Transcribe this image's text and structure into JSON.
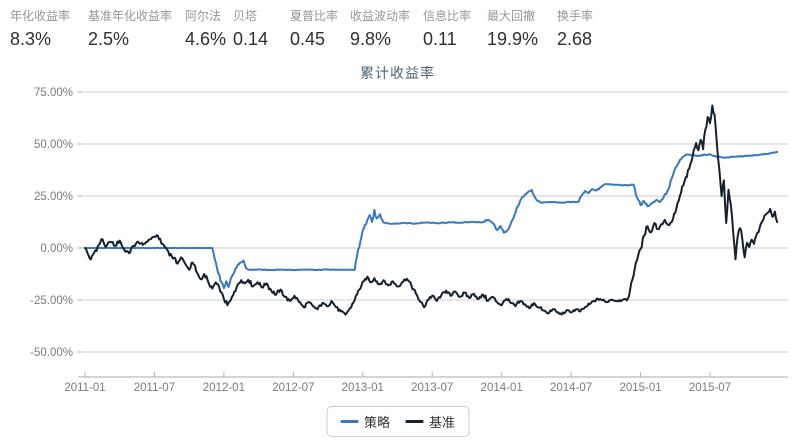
{
  "stats": [
    {
      "label": "年化收益率",
      "value": "8.3%"
    },
    {
      "label": "基准年化收益率",
      "value": "2.5%"
    },
    {
      "label": "阿尔法",
      "value": "4.6%"
    },
    {
      "label": "贝塔",
      "value": "0.14"
    },
    {
      "label": "夏普比率",
      "value": "0.45"
    },
    {
      "label": "收益波动率",
      "value": "9.8%"
    },
    {
      "label": "信息比率",
      "value": "0.11"
    },
    {
      "label": "最大回撤",
      "value": "19.9%"
    },
    {
      "label": "换手率",
      "value": "2.68"
    }
  ],
  "chart_data": {
    "type": "line",
    "title": "累计收益率",
    "xlabel": "",
    "ylabel": "",
    "grid": "horizontal-only",
    "legend_position": "bottom-center",
    "ylim": [
      -50,
      75
    ],
    "y_ticks": [
      {
        "label": "75.00%",
        "value": 75
      },
      {
        "label": "50.00%",
        "value": 50
      },
      {
        "label": "25.00%",
        "value": 25
      },
      {
        "label": "0.00%",
        "value": 0
      },
      {
        "label": "-25.00%",
        "value": -25
      },
      {
        "label": "-50.00%",
        "value": -50
      }
    ],
    "x_ticks": [
      "2011-01",
      "2011-07",
      "2012-01",
      "2012-07",
      "2013-01",
      "2013-07",
      "2014-01",
      "2014-07",
      "2015-01",
      "2015-07"
    ],
    "x_unit": "month-offset-from-2011-01",
    "y_unit": "percent-cumulative-return",
    "series": [
      {
        "name": "策略",
        "color": "#3b78bd",
        "points": [
          [
            0,
            0
          ],
          [
            11,
            0
          ],
          [
            11.2,
            -5
          ],
          [
            11.5,
            -12
          ],
          [
            11.8,
            -16.5
          ],
          [
            12,
            -19.3
          ],
          [
            12.2,
            -16
          ],
          [
            12.4,
            -18.8
          ],
          [
            12.7,
            -13.5
          ],
          [
            13,
            -10
          ],
          [
            13.4,
            -7
          ],
          [
            13.7,
            -6
          ],
          [
            13.9,
            -9.5
          ],
          [
            14.2,
            -10.5
          ],
          [
            15,
            -10.3
          ],
          [
            16,
            -10.6
          ],
          [
            17,
            -10.4
          ],
          [
            18,
            -10.6
          ],
          [
            19,
            -10.4
          ],
          [
            20,
            -10.6
          ],
          [
            21,
            -10.3
          ],
          [
            22,
            -10.5
          ],
          [
            23.3,
            -10.5
          ],
          [
            23.5,
            -4
          ],
          [
            23.8,
            3.5
          ],
          [
            24.1,
            9.5
          ],
          [
            24.4,
            13.5
          ],
          [
            24.6,
            15.8
          ],
          [
            24.8,
            12.5
          ],
          [
            25,
            18.3
          ],
          [
            25.2,
            14.2
          ],
          [
            25.5,
            16.2
          ],
          [
            25.8,
            12.2
          ],
          [
            26.5,
            11.6
          ],
          [
            27.5,
            12.1
          ],
          [
            28.5,
            11.7
          ],
          [
            29.5,
            12.3
          ],
          [
            30.5,
            11.9
          ],
          [
            31.5,
            12.4
          ],
          [
            32.5,
            12.1
          ],
          [
            33.5,
            12.6
          ],
          [
            34.3,
            12.3
          ],
          [
            34.8,
            13.6
          ],
          [
            35.2,
            12.1
          ],
          [
            35.6,
            8.6
          ],
          [
            35.9,
            10.6
          ],
          [
            36.2,
            7.3
          ],
          [
            36.6,
            9.2
          ],
          [
            37,
            14
          ],
          [
            37.4,
            20
          ],
          [
            37.8,
            24.5
          ],
          [
            38.2,
            26.5
          ],
          [
            38.6,
            27.9
          ],
          [
            39,
            23.2
          ],
          [
            39.4,
            21.8
          ],
          [
            40.2,
            22.1
          ],
          [
            41.2,
            21.8
          ],
          [
            42.2,
            22.2
          ],
          [
            42.6,
            22
          ],
          [
            42.9,
            25.1
          ],
          [
            43.2,
            27.4
          ],
          [
            43.5,
            26.4
          ],
          [
            43.8,
            28.2
          ],
          [
            44.2,
            27.7
          ],
          [
            44.6,
            29.4
          ],
          [
            45,
            30.8
          ],
          [
            46,
            30.4
          ],
          [
            47,
            30.1
          ],
          [
            47.4,
            30.5
          ],
          [
            47.7,
            24.2
          ],
          [
            48,
            20.6
          ],
          [
            48.3,
            22.6
          ],
          [
            48.6,
            20.1
          ],
          [
            49,
            21.6
          ],
          [
            49.4,
            23.1
          ],
          [
            49.7,
            22.1
          ],
          [
            50,
            24.6
          ],
          [
            50.4,
            28.2
          ],
          [
            50.8,
            35.1
          ],
          [
            51.2,
            40.2
          ],
          [
            51.6,
            43.6
          ],
          [
            52,
            44.9
          ],
          [
            53,
            44.3
          ],
          [
            54,
            45.1
          ],
          [
            54.5,
            44
          ],
          [
            55.2,
            43.4
          ],
          [
            56.2,
            43.9
          ],
          [
            57.2,
            44.3
          ],
          [
            58.2,
            44.7
          ],
          [
            59,
            45.3
          ],
          [
            59.5,
            45.9
          ],
          [
            59.8,
            46.2
          ]
        ]
      },
      {
        "name": "基准",
        "color": "#15212d",
        "points": [
          [
            0,
            0
          ],
          [
            0.3,
            -3.5
          ],
          [
            0.5,
            -5.5
          ],
          [
            0.8,
            -2
          ],
          [
            1.2,
            1.5
          ],
          [
            1.5,
            4.3
          ],
          [
            1.8,
            0.5
          ],
          [
            2.2,
            3
          ],
          [
            2.6,
            1
          ],
          [
            3,
            3.5
          ],
          [
            3.4,
            -1
          ],
          [
            3.8,
            -2.5
          ],
          [
            4.2,
            1
          ],
          [
            4.6,
            3
          ],
          [
            5,
            1.5
          ],
          [
            5.5,
            4
          ],
          [
            6,
            5.5
          ],
          [
            6.3,
            5.8
          ],
          [
            6.7,
            2
          ],
          [
            7,
            0
          ],
          [
            7.5,
            -4
          ],
          [
            8,
            -7.5
          ],
          [
            8.3,
            -4.5
          ],
          [
            8.7,
            -8
          ],
          [
            9,
            -10.5
          ],
          [
            9.3,
            -7
          ],
          [
            9.7,
            -12
          ],
          [
            10,
            -15
          ],
          [
            10.3,
            -12.5
          ],
          [
            10.7,
            -17
          ],
          [
            11,
            -19.5
          ],
          [
            11.3,
            -16.5
          ],
          [
            11.7,
            -21
          ],
          [
            12,
            -24.5
          ],
          [
            12.3,
            -27.5
          ],
          [
            12.6,
            -25
          ],
          [
            12.9,
            -21
          ],
          [
            13.2,
            -17.5
          ],
          [
            13.5,
            -15.5
          ],
          [
            13.8,
            -17
          ],
          [
            14.1,
            -15.3
          ],
          [
            14.5,
            -18.5
          ],
          [
            14.9,
            -16.5
          ],
          [
            15.3,
            -19
          ],
          [
            15.7,
            -17
          ],
          [
            16.1,
            -20.5
          ],
          [
            16.5,
            -22.5
          ],
          [
            16.9,
            -20
          ],
          [
            17.3,
            -23.5
          ],
          [
            17.7,
            -25.5
          ],
          [
            18.1,
            -23
          ],
          [
            18.5,
            -26
          ],
          [
            18.9,
            -28.5
          ],
          [
            19.3,
            -26
          ],
          [
            19.7,
            -28
          ],
          [
            20.1,
            -29.5
          ],
          [
            20.5,
            -26.5
          ],
          [
            20.9,
            -28
          ],
          [
            21.3,
            -25.5
          ],
          [
            21.7,
            -28.5
          ],
          [
            22.1,
            -30.5
          ],
          [
            22.5,
            -32
          ],
          [
            22.9,
            -29
          ],
          [
            23.3,
            -25
          ],
          [
            23.7,
            -20
          ],
          [
            24.1,
            -16
          ],
          [
            24.4,
            -13.8
          ],
          [
            24.7,
            -16.5
          ],
          [
            25,
            -14.5
          ],
          [
            25.4,
            -17.5
          ],
          [
            25.8,
            -15.5
          ],
          [
            26.2,
            -18
          ],
          [
            26.6,
            -16
          ],
          [
            27,
            -18.5
          ],
          [
            27.4,
            -16.5
          ],
          [
            27.8,
            -14.8
          ],
          [
            28.2,
            -18
          ],
          [
            28.6,
            -22
          ],
          [
            29,
            -26
          ],
          [
            29.3,
            -28.5
          ],
          [
            29.6,
            -25
          ],
          [
            30,
            -23
          ],
          [
            30.4,
            -25.5
          ],
          [
            30.8,
            -22.5
          ],
          [
            31.2,
            -20.5
          ],
          [
            31.6,
            -23
          ],
          [
            32,
            -21
          ],
          [
            32.4,
            -23.5
          ],
          [
            32.8,
            -21.5
          ],
          [
            33.2,
            -24
          ],
          [
            33.6,
            -22
          ],
          [
            34,
            -24.5
          ],
          [
            34.4,
            -22.5
          ],
          [
            34.8,
            -25.5
          ],
          [
            35.2,
            -23.5
          ],
          [
            35.6,
            -26
          ],
          [
            36,
            -27.5
          ],
          [
            36.4,
            -24.5
          ],
          [
            36.8,
            -26.5
          ],
          [
            37.2,
            -28
          ],
          [
            37.6,
            -25.5
          ],
          [
            38,
            -27
          ],
          [
            38.4,
            -29
          ],
          [
            38.8,
            -26.5
          ],
          [
            39.2,
            -28.5
          ],
          [
            39.6,
            -30
          ],
          [
            40,
            -31.5
          ],
          [
            40.4,
            -29.5
          ],
          [
            40.8,
            -31
          ],
          [
            41.2,
            -32
          ],
          [
            41.6,
            -30
          ],
          [
            42,
            -31
          ],
          [
            42.4,
            -29.5
          ],
          [
            42.8,
            -30.5
          ],
          [
            43.2,
            -28.5
          ],
          [
            43.6,
            -27
          ],
          [
            44,
            -25.5
          ],
          [
            44.5,
            -24.5
          ],
          [
            45,
            -26
          ],
          [
            45.5,
            -24.8
          ],
          [
            46,
            -25.5
          ],
          [
            46.5,
            -24.7
          ],
          [
            46.8,
            -25.2
          ],
          [
            47,
            -23
          ],
          [
            47.3,
            -15
          ],
          [
            47.6,
            -7
          ],
          [
            48,
            -0.5
          ],
          [
            48.3,
            6
          ],
          [
            48.6,
            10.5
          ],
          [
            48.9,
            7.5
          ],
          [
            49.2,
            12
          ],
          [
            49.5,
            9
          ],
          [
            49.8,
            11.5
          ],
          [
            50.1,
            13.5
          ],
          [
            50.4,
            11
          ],
          [
            50.7,
            12.5
          ],
          [
            51,
            17
          ],
          [
            51.4,
            25
          ],
          [
            51.8,
            32
          ],
          [
            52.2,
            38
          ],
          [
            52.5,
            44
          ],
          [
            52.8,
            50.5
          ],
          [
            53,
            47
          ],
          [
            53.2,
            52
          ],
          [
            53.4,
            47.5
          ],
          [
            53.6,
            57
          ],
          [
            53.8,
            63
          ],
          [
            54,
            60
          ],
          [
            54.2,
            68.5
          ],
          [
            54.4,
            64
          ],
          [
            54.6,
            50
          ],
          [
            54.8,
            38
          ],
          [
            55,
            25
          ],
          [
            55.2,
            32.5
          ],
          [
            55.4,
            12
          ],
          [
            55.6,
            28
          ],
          [
            55.8,
            21
          ],
          [
            56,
            8
          ],
          [
            56.2,
            -5.5
          ],
          [
            56.4,
            6
          ],
          [
            56.6,
            9.5
          ],
          [
            56.8,
            4
          ],
          [
            57,
            -4.5
          ],
          [
            57.2,
            2.5
          ],
          [
            57.4,
            0.5
          ],
          [
            57.6,
            4
          ],
          [
            57.8,
            2
          ],
          [
            58,
            6
          ],
          [
            58.3,
            10
          ],
          [
            58.6,
            13.5
          ],
          [
            58.9,
            16.5
          ],
          [
            59.2,
            18.8
          ],
          [
            59.4,
            15
          ],
          [
            59.6,
            17.5
          ],
          [
            59.8,
            12.5
          ]
        ]
      }
    ]
  }
}
